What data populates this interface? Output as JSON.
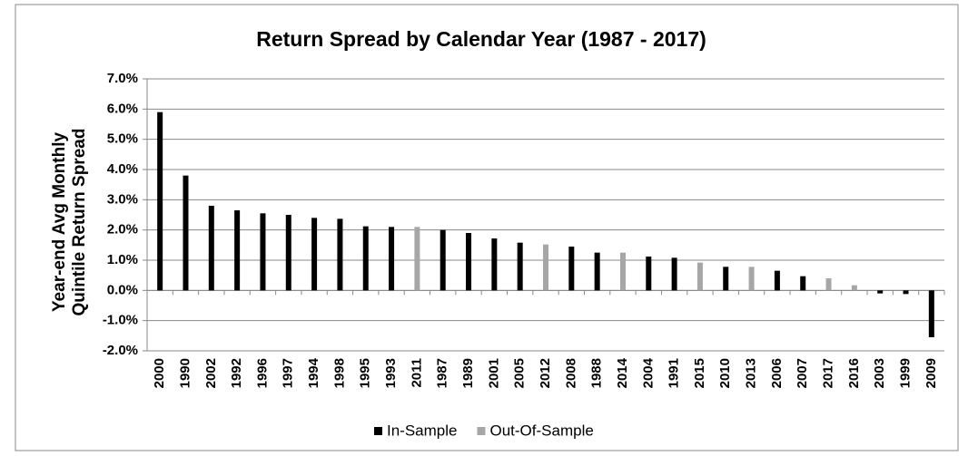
{
  "chart_data": {
    "type": "bar",
    "title": "Return Spread by Calendar Year (1987 - 2017)",
    "y_axis_label": "Year-end Avg Monthly Quintile Return Spread",
    "categories": [
      "2000",
      "1990",
      "2002",
      "1992",
      "1996",
      "1997",
      "1994",
      "1998",
      "1995",
      "1993",
      "2011",
      "1987",
      "1989",
      "2001",
      "2005",
      "2012",
      "2008",
      "1988",
      "2014",
      "2004",
      "1991",
      "2015",
      "2010",
      "2013",
      "2006",
      "2007",
      "2017",
      "2016",
      "2003",
      "1999",
      "2009"
    ],
    "series": [
      {
        "name": "In-Sample",
        "color": "#000000",
        "values": [
          5.9,
          3.8,
          2.8,
          2.65,
          2.55,
          2.5,
          2.4,
          2.37,
          2.12,
          2.1,
          null,
          2.0,
          1.9,
          1.72,
          1.58,
          null,
          1.45,
          1.25,
          null,
          1.12,
          1.08,
          null,
          0.78,
          null,
          0.65,
          0.47,
          null,
          null,
          -0.1,
          -0.12,
          -1.55
        ]
      },
      {
        "name": "Out-Of-Sample",
        "color": "#a6a6a6",
        "values": [
          null,
          null,
          null,
          null,
          null,
          null,
          null,
          null,
          null,
          null,
          2.1,
          null,
          null,
          null,
          null,
          1.52,
          null,
          null,
          1.25,
          null,
          null,
          0.92,
          null,
          0.78,
          null,
          null,
          0.4,
          0.17,
          null,
          null,
          null
        ]
      }
    ],
    "ylim": [
      -2,
      7
    ],
    "yticks": [
      {
        "value": -2,
        "label": "-2.0%"
      },
      {
        "value": -1,
        "label": "-1.0%"
      },
      {
        "value": 0,
        "label": "0.0%"
      },
      {
        "value": 1,
        "label": "1.0%"
      },
      {
        "value": 2,
        "label": "2.0%"
      },
      {
        "value": 3,
        "label": "3.0%"
      },
      {
        "value": 4,
        "label": "4.0%"
      },
      {
        "value": 5,
        "label": "5.0%"
      },
      {
        "value": 6,
        "label": "6.0%"
      },
      {
        "value": 7,
        "label": "7.0%"
      }
    ],
    "grid": true,
    "legend": "bottom"
  }
}
